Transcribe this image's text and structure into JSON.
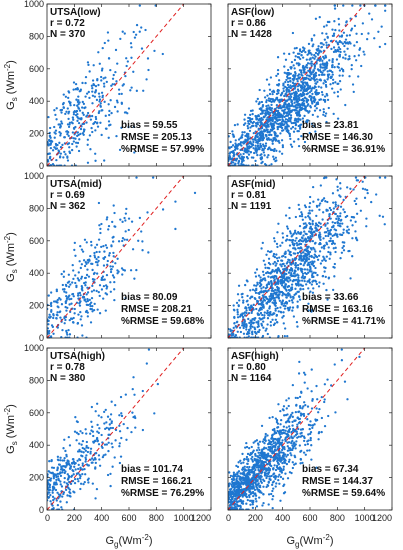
{
  "y_axis_label": {
    "main": "G",
    "sub": "s",
    "unit_open": " (Wm",
    "sup": "-2",
    "unit_close": ")"
  },
  "x_axis_label": {
    "main": "G",
    "sub": "g",
    "unit_open": "(Wm",
    "sup": "-2",
    "unit_close": ")"
  },
  "chart_data": [
    {
      "type": "scatter",
      "title": "UTSA(low)",
      "r_label": "r = 0.72",
      "n_label": "N = 370",
      "bias_label": "bias = 59.55",
      "rmse_label": "RMSE = 205.13",
      "prmse_label": "%RMSE = 57.99%",
      "n": 370,
      "r": 0.72,
      "x_mean": 250,
      "x_sd": 230,
      "y_offset": 85,
      "noise_sd": 175,
      "xlim": [
        0,
        1200
      ],
      "ylim": [
        0,
        1000
      ],
      "xticks": [
        0,
        200,
        400,
        600,
        800,
        1000,
        1200
      ],
      "yticks": [
        0,
        200,
        400,
        600,
        800,
        1000
      ],
      "color": "#1f77d0"
    },
    {
      "type": "scatter",
      "title": "ASF(low)",
      "r_label": "r = 0.86",
      "n_label": "N = 1428",
      "bias_label": "bias = 23.81",
      "rmse_label": "RMSE = 146.30",
      "prmse_label": "%RMSE = 36.91%",
      "n": 1428,
      "r": 0.86,
      "x_mean": 430,
      "x_sd": 260,
      "y_offset": 24,
      "noise_sd": 135,
      "xlim": [
        0,
        1200
      ],
      "ylim": [
        0,
        1000
      ],
      "xticks": [
        0,
        200,
        400,
        600,
        800,
        1000,
        1200
      ],
      "yticks": [
        0,
        200,
        400,
        600,
        800,
        1000
      ],
      "color": "#1f77d0"
    },
    {
      "type": "scatter",
      "title": "UTSA(mid)",
      "r_label": "r = 0.69",
      "n_label": "N = 362",
      "bias_label": "bias = 80.09",
      "rmse_label": "RMSE = 208.21",
      "prmse_label": "%RMSE = 59.68%",
      "n": 362,
      "r": 0.69,
      "x_mean": 280,
      "x_sd": 230,
      "y_offset": 100,
      "noise_sd": 175,
      "xlim": [
        0,
        1200
      ],
      "ylim": [
        0,
        1000
      ],
      "xticks": [
        0,
        200,
        400,
        600,
        800,
        1000,
        1200
      ],
      "yticks": [
        0,
        200,
        400,
        600,
        800,
        1000
      ],
      "color": "#1f77d0"
    },
    {
      "type": "scatter",
      "title": "ASF(mid)",
      "r_label": "r = 0.81",
      "n_label": "N = 1191",
      "bias_label": "bias = 33.66",
      "rmse_label": "RMSE = 163.16",
      "prmse_label": "%RMSE = 41.71%",
      "n": 1191,
      "r": 0.81,
      "x_mean": 440,
      "x_sd": 260,
      "y_offset": 35,
      "noise_sd": 150,
      "xlim": [
        0,
        1200
      ],
      "ylim": [
        0,
        1000
      ],
      "xticks": [
        0,
        200,
        400,
        600,
        800,
        1000,
        1200
      ],
      "yticks": [
        0,
        200,
        400,
        600,
        800,
        1000
      ],
      "color": "#1f77d0"
    },
    {
      "type": "scatter",
      "title": "UTSA(high)",
      "r_label": "r = 0.78",
      "n_label": "N = 380",
      "bias_label": "bias = 101.74",
      "rmse_label": "RMSE = 166.21",
      "prmse_label": "%RMSE = 76.29%",
      "n": 380,
      "r": 0.78,
      "x_mean": 210,
      "x_sd": 220,
      "y_offset": 100,
      "noise_sd": 140,
      "xlim": [
        0,
        1200
      ],
      "ylim": [
        0,
        1000
      ],
      "xticks": [
        0,
        200,
        400,
        600,
        800,
        1000,
        1200
      ],
      "yticks": [
        0,
        200,
        400,
        600,
        800,
        1000
      ],
      "color": "#1f77d0"
    },
    {
      "type": "scatter",
      "title": "ASF(high)",
      "r_label": "r = 0.80",
      "n_label": "N = 1164",
      "bias_label": "bias = 67.34",
      "rmse_label": "RMSE = 144.37",
      "prmse_label": "%RMSE = 59.64%",
      "n": 1164,
      "r": 0.8,
      "x_mean": 250,
      "x_sd": 220,
      "y_offset": 60,
      "noise_sd": 130,
      "xlim": [
        0,
        1200
      ],
      "ylim": [
        0,
        1000
      ],
      "xticks": [
        0,
        200,
        400,
        600,
        800,
        1000,
        1200
      ],
      "yticks": [
        0,
        200,
        400,
        600,
        800,
        1000
      ],
      "color": "#1f77d0"
    }
  ],
  "reference_line": {
    "style": "dashed",
    "color": "#e02020",
    "slope": 1,
    "intercept": 0
  }
}
